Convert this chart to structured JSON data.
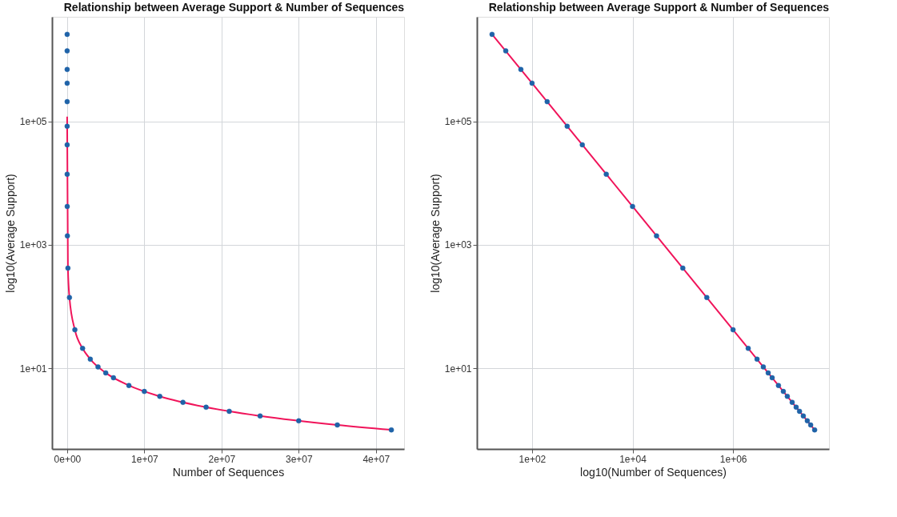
{
  "chart_data": [
    {
      "type": "scatter",
      "title": "Relationship between Average Support & Number of Sequences",
      "xlabel": "Number of Sequences",
      "ylabel": "log10(Average Support)",
      "log": "y",
      "grid": true,
      "marker": "circle",
      "line_style": "solid",
      "xlim": [
        -1960000,
        43650000
      ],
      "ylim": [
        0.49,
        5000000
      ],
      "xticks": [
        {
          "value": 0,
          "label": "0e+00"
        },
        {
          "value": 10000000,
          "label": "1e+07"
        },
        {
          "value": 20000000,
          "label": "2e+07"
        },
        {
          "value": 30000000,
          "label": "3e+07"
        },
        {
          "value": 40000000,
          "label": "4e+07"
        }
      ],
      "yticks": [
        {
          "value": 10,
          "label": "1e+01"
        },
        {
          "value": 1000,
          "label": "1e+03"
        },
        {
          "value": 100000,
          "label": "1e+05"
        }
      ],
      "series": [
        {
          "color": "#1f63a8",
          "x": [
            16,
            30,
            60,
            100,
            200,
            500,
            1000,
            3000,
            10000,
            30000,
            100000,
            300000,
            1000000,
            2000000,
            3000000,
            4000000,
            5000000,
            6000000,
            8000000,
            10000000,
            12000000,
            15000000,
            18000000,
            21000000,
            25000000,
            30000000,
            35000000,
            42000000
          ],
          "values": [
            2600000,
            1400000,
            700000,
            420000,
            210000,
            84000,
            42000,
            14000,
            4200,
            1400,
            420,
            140,
            42,
            21,
            14,
            10.5,
            8.4,
            7,
            5.25,
            4.2,
            3.5,
            2.8,
            2.33,
            2,
            1.68,
            1.4,
            1.2,
            1
          ]
        },
        {
          "type": "line",
          "marker": "none",
          "color": "#f0145a",
          "x": [
            350,
            100000,
            300000,
            1000000,
            2000000,
            3000000,
            5000000,
            8000000,
            12000000,
            18000000,
            25000000,
            35000000,
            42000000
          ],
          "values": [
            120000,
            420,
            140,
            42,
            21,
            14,
            8.4,
            5.25,
            3.5,
            2.33,
            1.68,
            1.2,
            1
          ]
        }
      ]
    },
    {
      "type": "scatter",
      "title": "Relationship between Average Support & Number of Sequences",
      "xlabel": "log10(Number of Sequences)",
      "ylabel": "log10(Average Support)",
      "log": "xy",
      "grid": true,
      "marker": "circle",
      "line_style": "solid",
      "xlim": [
        8,
        81000000
      ],
      "ylim": [
        0.49,
        5000000
      ],
      "xticks": [
        {
          "value": 100,
          "label": "1e+02"
        },
        {
          "value": 10000,
          "label": "1e+04"
        },
        {
          "value": 1000000,
          "label": "1e+06"
        }
      ],
      "yticks": [
        {
          "value": 10,
          "label": "1e+01"
        },
        {
          "value": 1000,
          "label": "1e+03"
        },
        {
          "value": 100000,
          "label": "1e+05"
        }
      ],
      "series": [
        {
          "color": "#1f63a8",
          "x": [
            16,
            30,
            60,
            100,
            200,
            500,
            1000,
            3000,
            10000,
            30000,
            100000,
            300000,
            1000000,
            2000000,
            3000000,
            4000000,
            5000000,
            6000000,
            8000000,
            10000000,
            12000000,
            15000000,
            18000000,
            21000000,
            25000000,
            30000000,
            35000000,
            42000000
          ],
          "values": [
            2600000,
            1400000,
            700000,
            420000,
            210000,
            84000,
            42000,
            14000,
            4200,
            1400,
            420,
            140,
            42,
            21,
            14,
            10.5,
            8.4,
            7,
            5.25,
            4.2,
            3.5,
            2.8,
            2.33,
            2,
            1.68,
            1.4,
            1.2,
            1
          ]
        },
        {
          "type": "line",
          "marker": "none",
          "color": "#f0145a",
          "x": [
            16,
            100,
            10000,
            1000000,
            42000000
          ],
          "values": [
            2600000,
            420000,
            4200,
            42,
            1
          ]
        }
      ]
    }
  ]
}
